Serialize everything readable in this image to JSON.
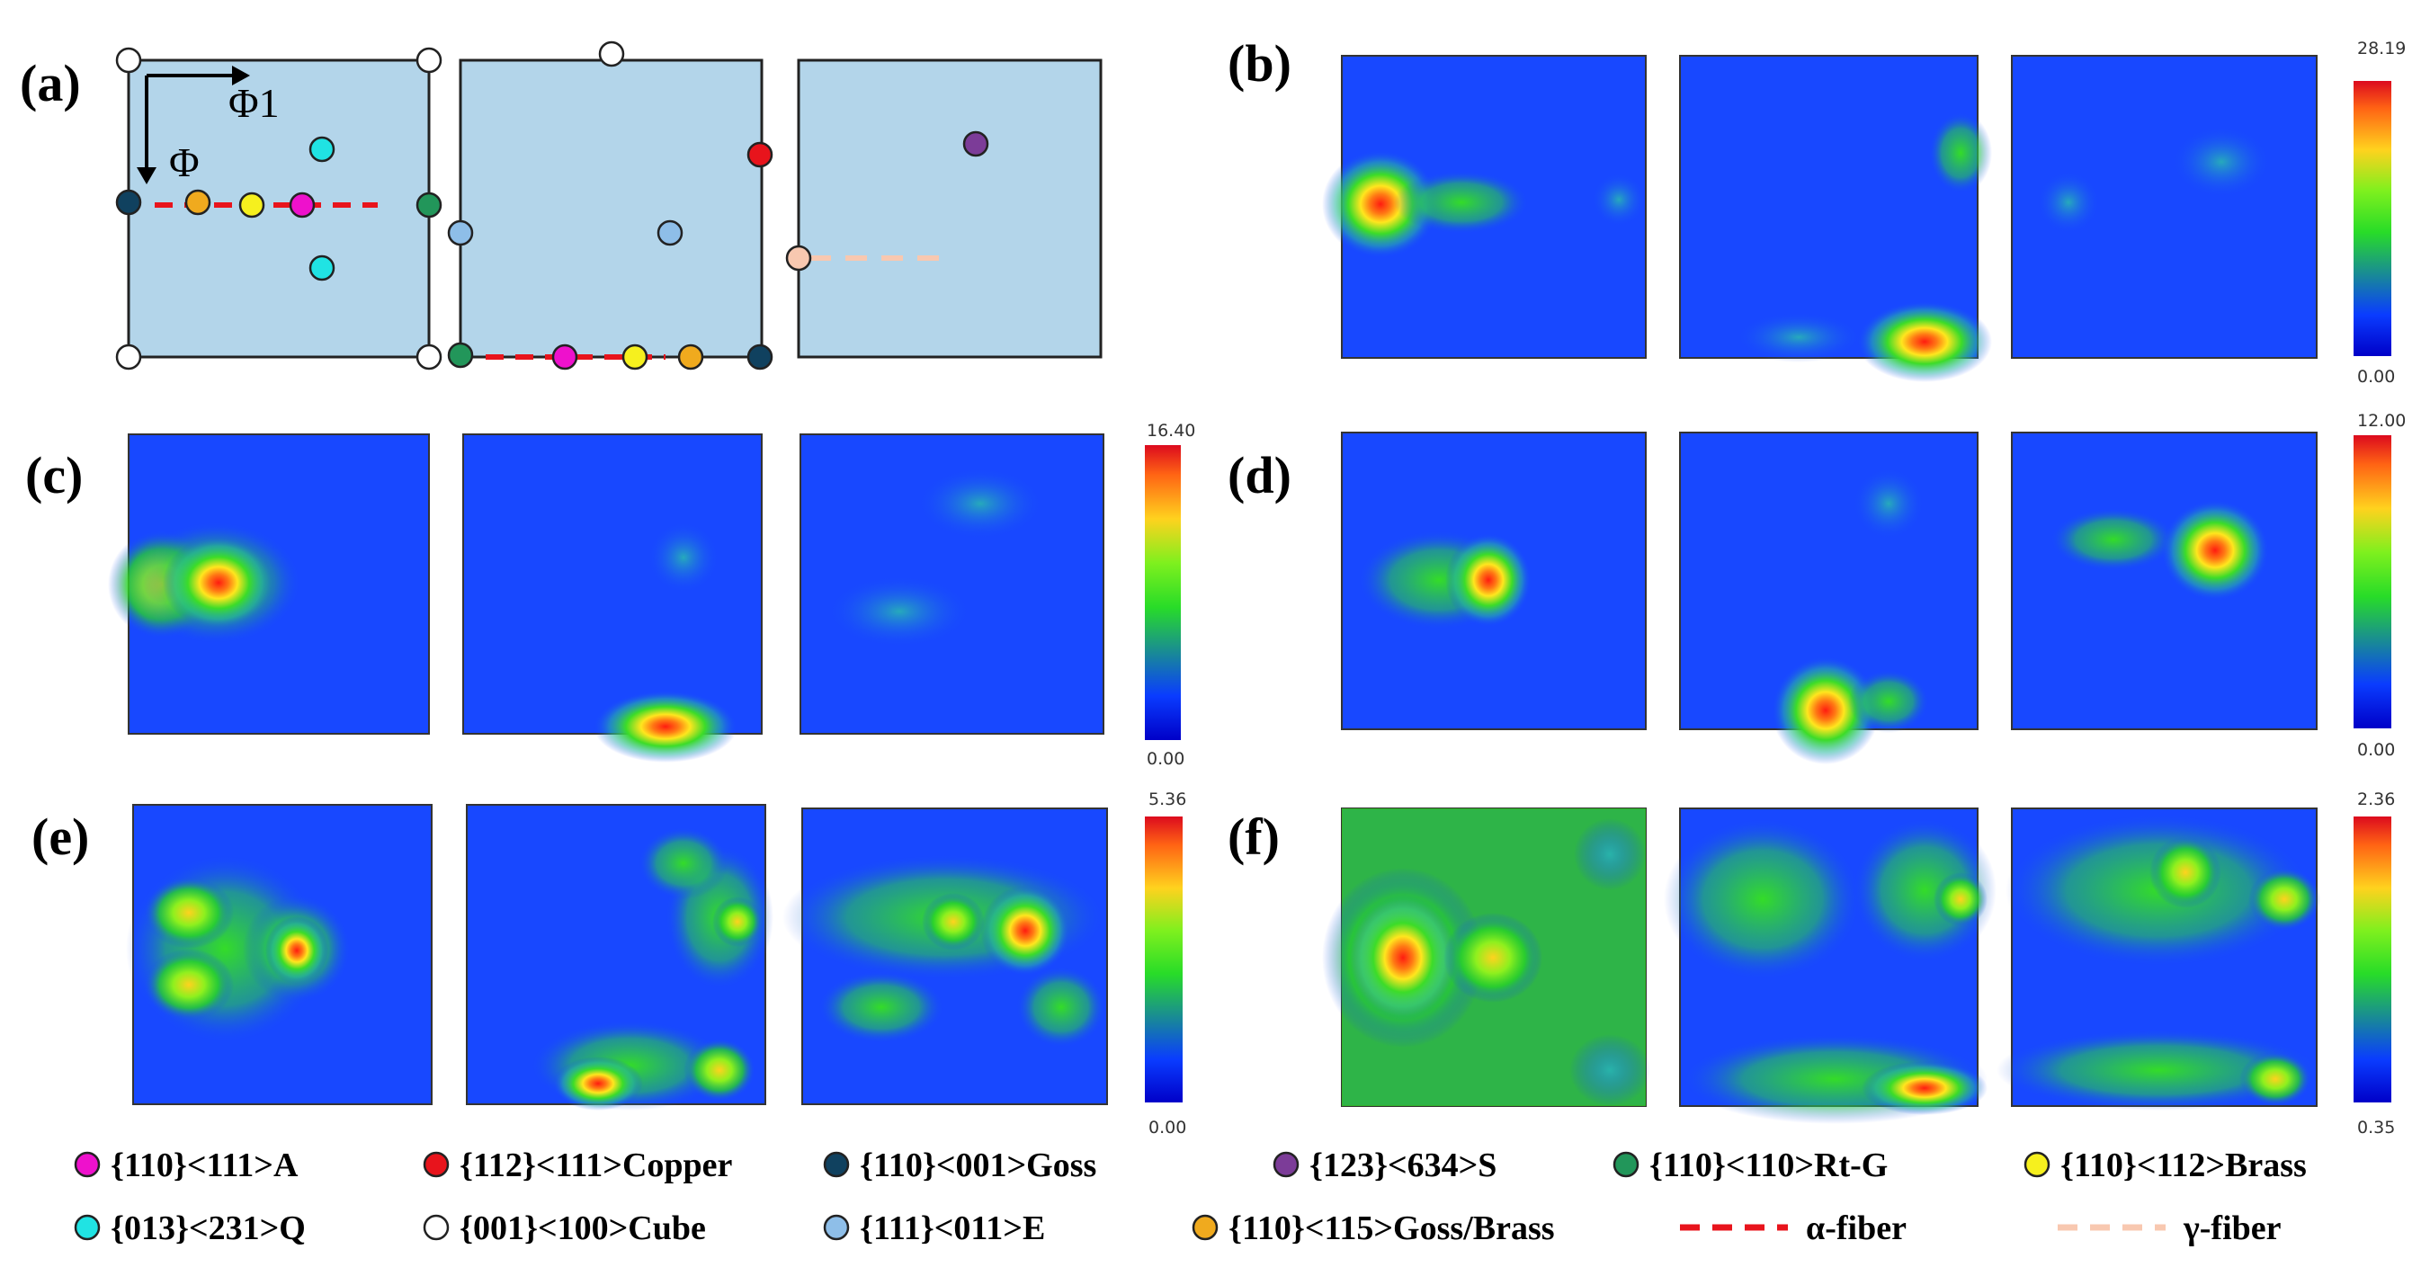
{
  "panel_labels": [
    "(a)",
    "(b)",
    "(c)",
    "(d)",
    "(e)",
    "(f)"
  ],
  "axis_labels": {
    "phi1": "Φ1",
    "phi": "Φ"
  },
  "colors": {
    "map_bg": "#b3d5ea",
    "A": "#ee11cc",
    "Copper": "#e8141c",
    "Goss": "#10415f",
    "S": "#7c3c98",
    "RtG": "#22965a",
    "Brass": "#f6f01e",
    "Q": "#20e3e3",
    "Cube": "#ffffff",
    "E": "#8ebee8",
    "GossBrass": "#f0aa1e",
    "alpha_fiber": "#e8141c",
    "gamma_fiber": "#f8c8b0"
  },
  "colorbars": [
    {
      "panel": "b",
      "max": "28.19",
      "min": "0.00"
    },
    {
      "panel": "c",
      "max": "16.40",
      "min": "0.00"
    },
    {
      "panel": "d",
      "max": "12.00",
      "min": "0.00"
    },
    {
      "panel": "e",
      "max": "5.36",
      "min": "0.00"
    },
    {
      "panel": "f",
      "max": "2.36",
      "min": "0.35"
    }
  ],
  "legend": [
    {
      "label": "{110}<111>A",
      "color_key": "A",
      "kind": "dot"
    },
    {
      "label": "{112}<111>Copper",
      "color_key": "Copper",
      "kind": "dot"
    },
    {
      "label": "{110}<001>Goss",
      "color_key": "Goss",
      "kind": "dot"
    },
    {
      "label": "{123}<634>S",
      "color_key": "S",
      "kind": "dot"
    },
    {
      "label": "{110}<110>Rt-G",
      "color_key": "RtG",
      "kind": "dot"
    },
    {
      "label": "{110}<112>Brass",
      "color_key": "Brass",
      "kind": "dot"
    },
    {
      "label": "{013}<231>Q",
      "color_key": "Q",
      "kind": "dot"
    },
    {
      "label": "{001}<100>Cube",
      "color_key": "Cube",
      "kind": "dot"
    },
    {
      "label": "{111}<011>E",
      "color_key": "E",
      "kind": "dot"
    },
    {
      "label": "{110}<115>Goss/Brass",
      "color_key": "GossBrass",
      "kind": "dot"
    },
    {
      "label": "α-fiber",
      "color_key": "alpha_fiber",
      "kind": "dash"
    },
    {
      "label": "γ-fiber",
      "color_key": "gamma_fiber",
      "kind": "dash"
    }
  ]
}
